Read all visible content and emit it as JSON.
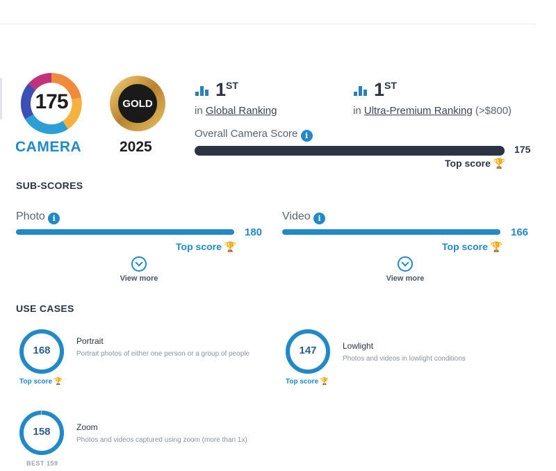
{
  "camera": {
    "score": "175",
    "label": "CAMERA"
  },
  "gold_badge": {
    "label": "GOLD",
    "year": "2025"
  },
  "rankings": [
    {
      "position": "1",
      "suffix": "ST",
      "prefix": "in",
      "link": "Global Ranking",
      "extra": ""
    },
    {
      "position": "1",
      "suffix": "ST",
      "prefix": "in",
      "link": "Ultra-Premium Ranking",
      "extra": "(>$800)"
    }
  ],
  "overall": {
    "label": "Overall Camera Score",
    "value": "175",
    "fill": 1.0,
    "top_score": "Top score"
  },
  "subscores": {
    "title": "SUB-SCORES",
    "items": [
      {
        "label": "Photo",
        "value": "180",
        "fill": 1.0,
        "top_score": "Top score",
        "view_more": "View more"
      },
      {
        "label": "Video",
        "value": "166",
        "fill": 1.0,
        "top_score": "Top score",
        "view_more": "View more"
      }
    ]
  },
  "use_cases": {
    "title": "USE CASES",
    "items": [
      {
        "score": "168",
        "title": "Portrait",
        "desc": "Portrait photos of either one person or a group of people",
        "footer": "Top score",
        "fill": 1.0
      },
      {
        "score": "147",
        "title": "Lowlight",
        "desc": "Photos and videos in lowlight conditions",
        "footer": "Top score",
        "fill": 1.0
      },
      {
        "score": "158",
        "title": "Zoom",
        "desc": "Photos and videos captured using zoom (more than 1x)",
        "footer": "BEST 159",
        "fill": 0.994
      }
    ]
  },
  "icons": {
    "trophy": "trophy-icon",
    "info": "info-icon",
    "ranking": "ranking-bars-icon",
    "chevron": "chevron-down-icon"
  },
  "colors": {
    "accent": "#2189c8",
    "dark_bar": "#2b3345",
    "trophy": "#f3b43a"
  }
}
